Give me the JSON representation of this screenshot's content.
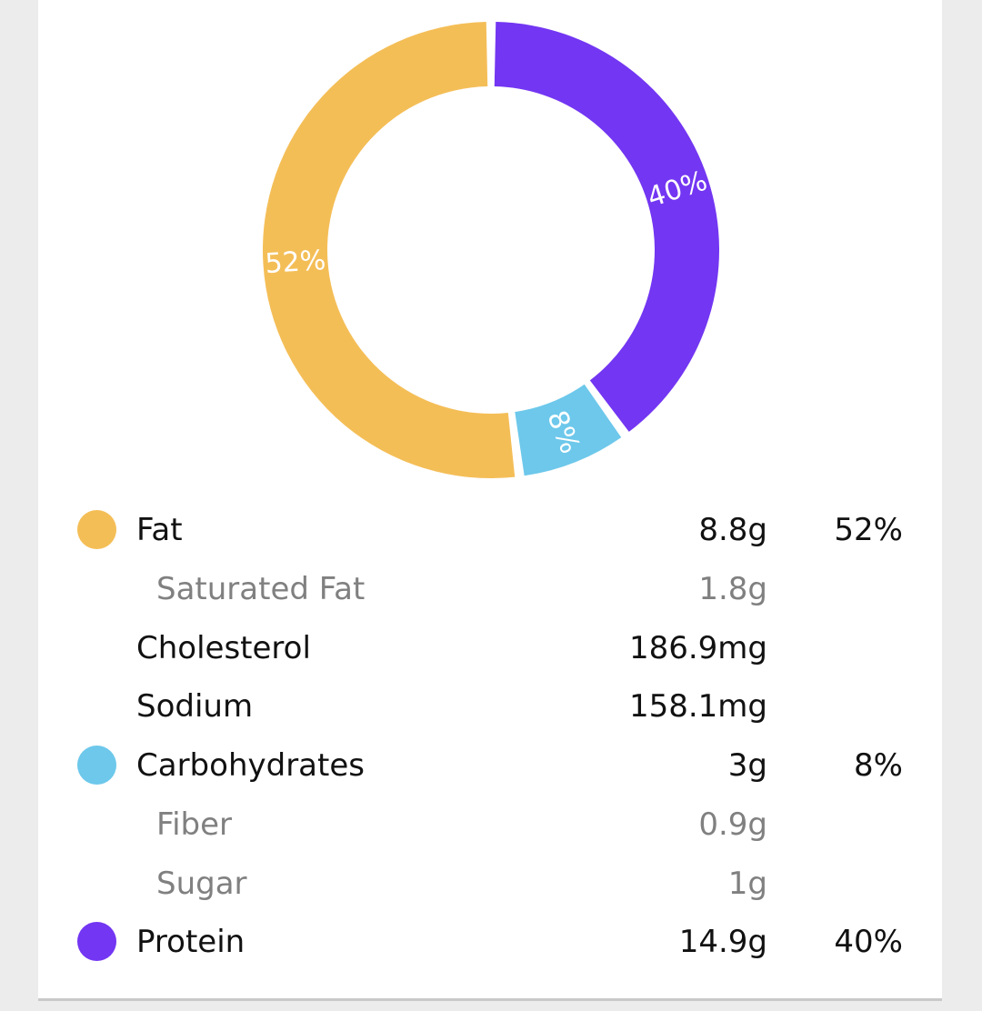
{
  "chart_data": {
    "type": "pie",
    "title": "",
    "slices": [
      {
        "name": "Fat",
        "value": 52,
        "label": "52%",
        "color": "#F4BE57"
      },
      {
        "name": "Carbohydrates",
        "value": 8,
        "label": "8%",
        "color": "#6DC8EB"
      },
      {
        "name": "Protein",
        "value": 40,
        "label": "40%",
        "color": "#7336F2"
      }
    ]
  },
  "legend": {
    "rows": [
      {
        "name": "Fat",
        "amount": "8.8g",
        "percent": "52%",
        "color": "#F4BE57",
        "sub": false
      },
      {
        "name": "Saturated Fat",
        "amount": "1.8g",
        "percent": "",
        "color": "",
        "sub": true
      },
      {
        "name": "Cholesterol",
        "amount": "186.9mg",
        "percent": "",
        "color": "",
        "sub": false
      },
      {
        "name": "Sodium",
        "amount": "158.1mg",
        "percent": "",
        "color": "",
        "sub": false
      },
      {
        "name": "Carbohydrates",
        "amount": "3g",
        "percent": "8%",
        "color": "#6DC8EB",
        "sub": false
      },
      {
        "name": "Fiber",
        "amount": "0.9g",
        "percent": "",
        "color": "",
        "sub": true
      },
      {
        "name": "Sugar",
        "amount": "1g",
        "percent": "",
        "color": "",
        "sub": true
      },
      {
        "name": "Protein",
        "amount": "14.9g",
        "percent": "40%",
        "color": "#7336F2",
        "sub": false
      }
    ]
  }
}
